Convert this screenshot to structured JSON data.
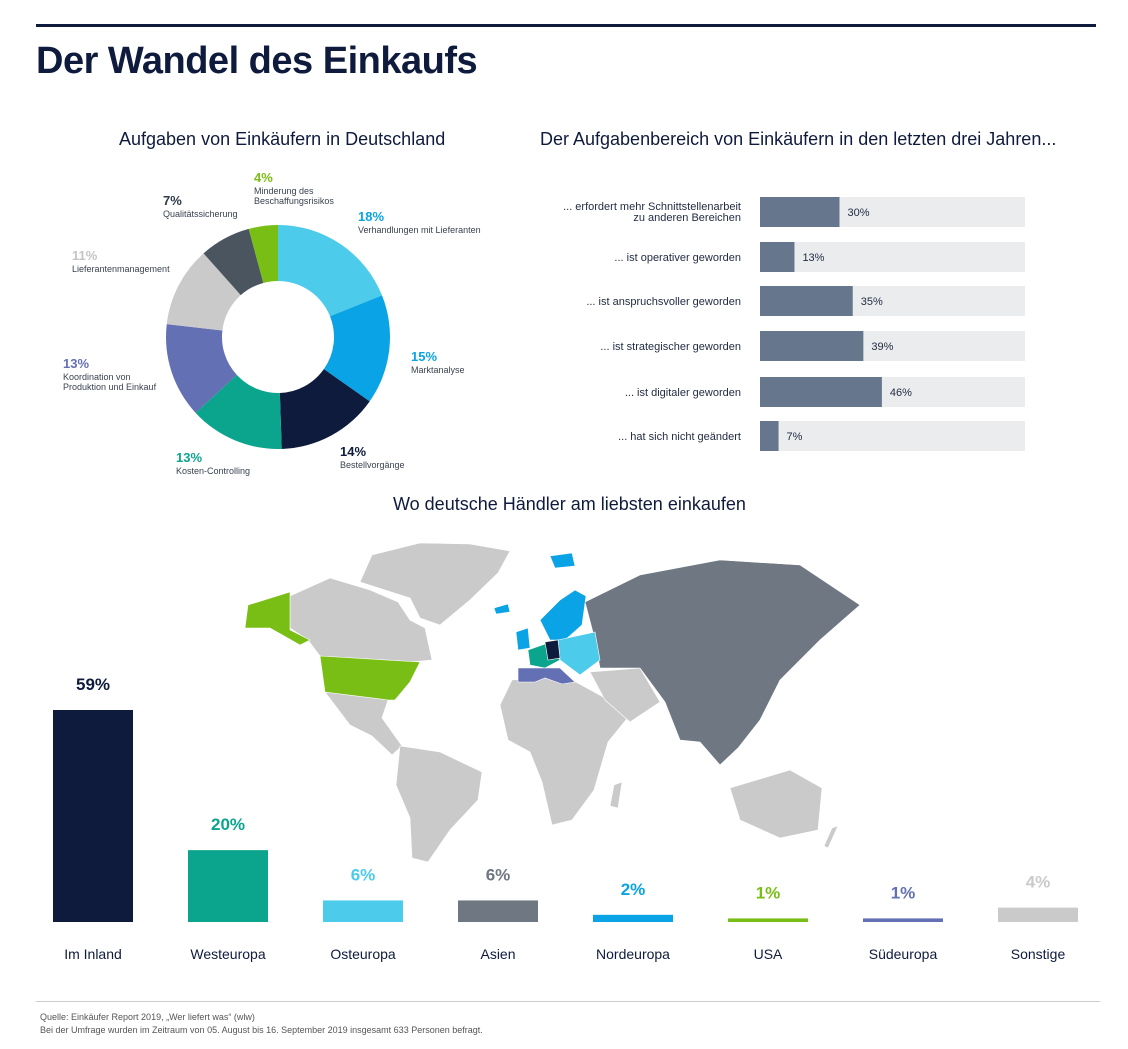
{
  "header": {
    "title": "Der Wandel des Einkaufs"
  },
  "donut_section": {
    "title": "Aufgaben von Einkäufern in Deutschland"
  },
  "bars_section": {
    "title": "Der Aufgabenbereich von Einkäufern in den letzten drei Jahren..."
  },
  "map_section": {
    "title": "Wo deutsche Händler am liebsten einkaufen"
  },
  "footer": {
    "source": "Quelle: Einkäufer Report 2019, „Wer liefert was“ (wlw)",
    "note": "Bei der Umfrage wurden im Zeitraum von 05. August bis 16. September 2019 insgesamt 633 Personen befragt."
  },
  "map_colors": {
    "germany": "#0f1b3d",
    "west": "#0ba48d",
    "east": "#4ccbeb",
    "asia": "#6e7782",
    "north": "#0aa3e6",
    "usa": "#79be14",
    "south": "#6470b4",
    "other": "#cacaca"
  },
  "chart_data": [
    {
      "type": "pie",
      "title": "Aufgaben von Einkäufern in Deutschland",
      "donut": true,
      "slices": [
        {
          "label": "Verhandlungen mit Lieferanten",
          "value": 18,
          "display": "18%",
          "color": "#4ccbeb"
        },
        {
          "label": "Marktanalyse",
          "value": 15,
          "display": "15%",
          "color": "#0aa3e6"
        },
        {
          "label": "Bestellvorgänge",
          "value": 14,
          "display": "14%",
          "color": "#0f1b3d"
        },
        {
          "label": "Kosten-Controlling",
          "value": 13,
          "display": "13%",
          "color": "#0ba48d"
        },
        {
          "label": "Koordination von Produktion und Einkauf",
          "value": 13,
          "display": "13%",
          "color": "#6470b4"
        },
        {
          "label": "Lieferantenmanagement",
          "value": 11,
          "display": "11%",
          "color": "#cacaca"
        },
        {
          "label": "Qualitätssicherung",
          "value": 7,
          "display": "7%",
          "color": "#4a5560"
        },
        {
          "label": "Minderung des Beschaffungsrisikos",
          "value": 4,
          "display": "4%",
          "color": "#79be14"
        }
      ]
    },
    {
      "type": "bar",
      "orientation": "horizontal",
      "title": "Der Aufgabenbereich von Einkäufern in den letzten drei Jahren...",
      "categories": [
        "... erfordert mehr Schnittstellenarbeit zu anderen Bereichen",
        "... ist operativer geworden",
        "... ist anspruchsvoller geworden",
        "... ist strategischer geworden",
        "... ist digitaler geworden",
        "... hat sich nicht geändert"
      ],
      "values": [
        30,
        13,
        35,
        39,
        46,
        7
      ],
      "labels": [
        "30%",
        "13%",
        "35%",
        "39%",
        "46%",
        "7%"
      ],
      "xlim": [
        0,
        100
      ],
      "bar_color": "#66768d",
      "track_color": "#ebecee"
    },
    {
      "type": "bar",
      "title": "Wo deutsche Händler am liebsten einkaufen",
      "categories": [
        "Im Inland",
        "Westeuropa",
        "Osteuropa",
        "Asien",
        "Nordeuropa",
        "USA",
        "Südeuropa",
        "Sonstige"
      ],
      "values": [
        59,
        20,
        6,
        6,
        2,
        1,
        1,
        4
      ],
      "labels": [
        "59%",
        "20%",
        "6%",
        "6%",
        "2%",
        "1%",
        "1%",
        "4%"
      ],
      "colors": [
        "#0f1b3d",
        "#0ba48d",
        "#4ccbeb",
        "#6e7782",
        "#0aa3e6",
        "#79be14",
        "#6470b4",
        "#cacaca"
      ],
      "ylim": [
        0,
        59
      ]
    }
  ]
}
